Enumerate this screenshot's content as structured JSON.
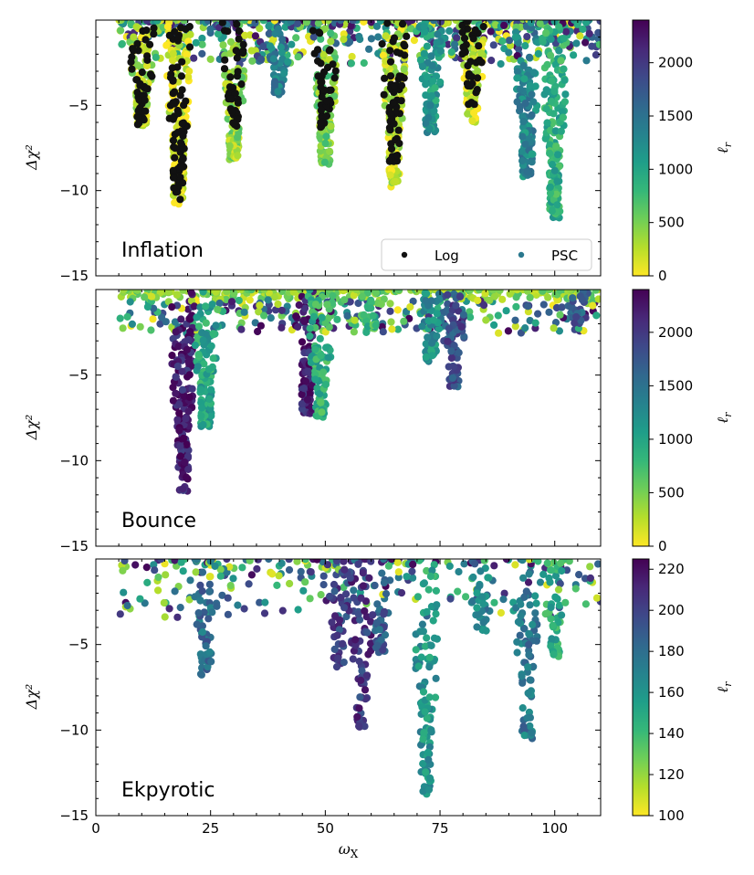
{
  "colors": {
    "log_points": "#111111",
    "psc_legend_marker": "#2a788e",
    "viridis": [
      "#440154",
      "#482878",
      "#3e4989",
      "#31688e",
      "#26828e",
      "#1f9e89",
      "#35b779",
      "#6ece58",
      "#b5de2b",
      "#fde725"
    ]
  },
  "chart_data": [
    {
      "type": "scatter",
      "title": "Inflation",
      "xlabel": "ω_X",
      "ylabel": "Δχ²",
      "xlim": [
        0,
        110
      ],
      "ylim": [
        -15,
        0
      ],
      "xticks": [
        0,
        25,
        50,
        75,
        100
      ],
      "yticks": [
        -5,
        -10,
        -15
      ],
      "ytick_labels": [
        "−5",
        "−10",
        "−15"
      ],
      "colorbar": {
        "label": "ℓ_r",
        "range": [
          0,
          2400
        ],
        "ticks": [
          0,
          500,
          1000,
          1500,
          2000
        ],
        "tick_labels": [
          "0",
          "500",
          "1000",
          "1500",
          "2000"
        ]
      },
      "legend": {
        "position": "lower-right",
        "entries": [
          {
            "label": "Log",
            "marker": "black-dot"
          },
          {
            "label": "PSC",
            "marker": "teal-dot"
          }
        ]
      },
      "series": [
        {
          "name": "PSC",
          "color_scale": "viridis_r",
          "troughs": [
            {
              "x": 10,
              "min": -6.2,
              "c": 300
            },
            {
              "x": 18,
              "min": -10.8,
              "c": 100
            },
            {
              "x": 30,
              "min": -8.2,
              "c": 400
            },
            {
              "x": 50,
              "min": -8.5,
              "c": 500
            },
            {
              "x": 65,
              "min": -9.8,
              "c": 200
            },
            {
              "x": 82,
              "min": -6.0,
              "c": 150
            },
            {
              "x": 94,
              "min": -9.2,
              "c": 1300
            },
            {
              "x": 100,
              "min": -11.6,
              "c": 900
            },
            {
              "x": 40,
              "min": -4.4,
              "c": 1400
            },
            {
              "x": 73,
              "min": -6.6,
              "c": 1100
            }
          ]
        },
        {
          "name": "Log",
          "color": "#111111",
          "troughs": [
            {
              "x": 10,
              "min": -6.3
            },
            {
              "x": 18,
              "min": -10.6
            },
            {
              "x": 30,
              "min": -6.3
            },
            {
              "x": 50,
              "min": -6.3
            },
            {
              "x": 65,
              "min": -8.4
            },
            {
              "x": 82,
              "min": -5.0
            }
          ]
        }
      ]
    },
    {
      "type": "scatter",
      "title": "Bounce",
      "xlabel": "ω_X",
      "ylabel": "Δχ²",
      "xlim": [
        0,
        110
      ],
      "ylim": [
        -15,
        0
      ],
      "xticks": [
        0,
        25,
        50,
        75,
        100
      ],
      "yticks": [
        -5,
        -10,
        -15
      ],
      "ytick_labels": [
        "−5",
        "−10",
        "−15"
      ],
      "colorbar": {
        "label": "ℓ_r",
        "range": [
          0,
          2400
        ],
        "ticks": [
          0,
          500,
          1000,
          1500,
          2000
        ],
        "tick_labels": [
          "0",
          "500",
          "1000",
          "1500",
          "2000"
        ]
      },
      "series": [
        {
          "name": "PSC",
          "color_scale": "viridis_r",
          "troughs": [
            {
              "x": 19,
              "min": -11.9,
              "c": 2200
            },
            {
              "x": 24,
              "min": -8.0,
              "c": 1000
            },
            {
              "x": 46,
              "min": -7.3,
              "c": 2200
            },
            {
              "x": 49,
              "min": -7.5,
              "c": 900
            },
            {
              "x": 78,
              "min": -5.7,
              "c": 1800
            },
            {
              "x": 73,
              "min": -4.2,
              "c": 1200
            },
            {
              "x": 105,
              "min": -2.0,
              "c": 1700
            },
            {
              "x": 60,
              "min": -2.6,
              "c": 800
            }
          ]
        }
      ]
    },
    {
      "type": "scatter",
      "title": "Ekpyrotic",
      "xlabel": "ω_X",
      "ylabel": "Δχ²",
      "xlim": [
        0,
        110
      ],
      "ylim": [
        -15,
        0
      ],
      "xticks": [
        0,
        25,
        50,
        75,
        100
      ],
      "xtick_labels": [
        "0",
        "25",
        "50",
        "75",
        "100"
      ],
      "yticks": [
        -5,
        -10,
        -15
      ],
      "ytick_labels": [
        "−5",
        "−10",
        "−15"
      ],
      "colorbar": {
        "label": "ℓ_r",
        "range": [
          100,
          225
        ],
        "ticks": [
          100,
          120,
          140,
          160,
          180,
          200,
          220
        ],
        "tick_labels": [
          "100",
          "120",
          "140",
          "160",
          "180",
          "200",
          "220"
        ]
      },
      "series": [
        {
          "name": "PSC",
          "color_scale": "viridis_r",
          "troughs": [
            {
              "x": 24,
              "min": -7.3,
              "c": 180
            },
            {
              "x": 58,
              "min": -10.0,
              "c": 205
            },
            {
              "x": 72,
              "min": -13.8,
              "c": 160
            },
            {
              "x": 94,
              "min": -10.5,
              "c": 175
            },
            {
              "x": 53,
              "min": -6.5,
              "c": 200
            },
            {
              "x": 62,
              "min": -5.5,
              "c": 190
            },
            {
              "x": 84,
              "min": -4.5,
              "c": 170
            },
            {
              "x": 100,
              "min": -5.8,
              "c": 150
            }
          ]
        }
      ]
    }
  ],
  "labels": {
    "panel_titles": [
      "Inflation",
      "Bounce",
      "Ekpyrotic"
    ],
    "ylabel": "Δχ²",
    "xlabel": "ω",
    "xlabel_sub": "X",
    "cbar_label": "ℓ",
    "cbar_label_sub": "r",
    "legend_log": "Log",
    "legend_psc": "PSC"
  }
}
